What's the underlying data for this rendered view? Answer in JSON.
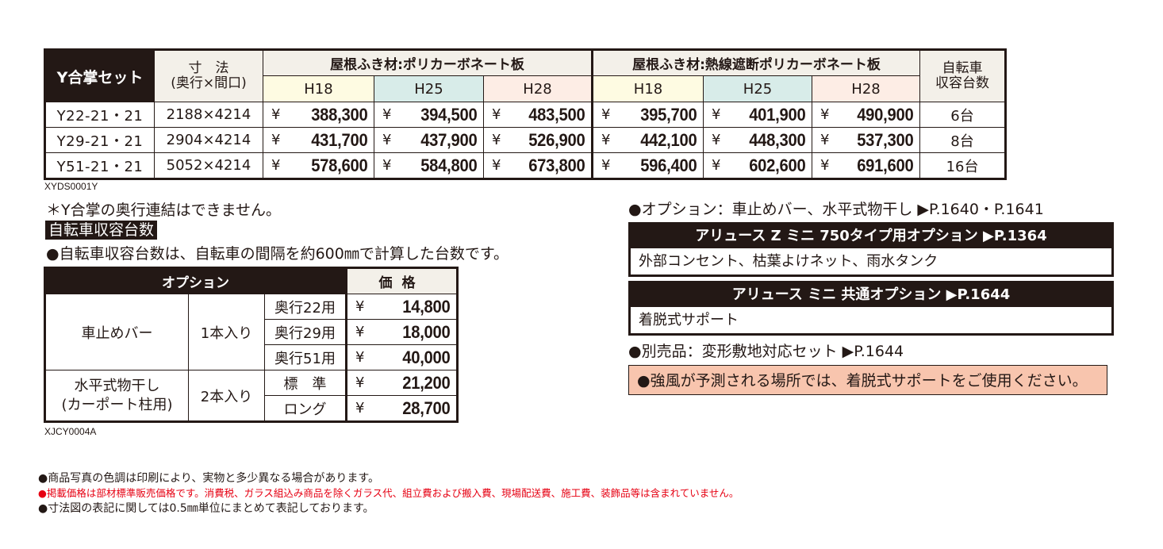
{
  "main_table": {
    "header": {
      "set_label": "Y合掌セット",
      "dim_label_1": "寸　法",
      "dim_label_2": "(奥行×間口)",
      "group_a": "屋根ふき材:ポリカーボネート板",
      "group_b": "屋根ふき材:熱線遮断ポリカーボネート板",
      "bike_label_1": "自転車",
      "bike_label_2": "収容台数",
      "heights": [
        "H18",
        "H25",
        "H28"
      ]
    },
    "currency": "¥",
    "rows": [
      {
        "model": "Y22-21・21",
        "dims": "2188×4214",
        "a": [
          "388,300",
          "394,500",
          "483,500"
        ],
        "b": [
          "395,700",
          "401,900",
          "490,900"
        ],
        "bikes": "6台"
      },
      {
        "model": "Y29-21・21",
        "dims": "2904×4214",
        "a": [
          "431,700",
          "437,900",
          "526,900"
        ],
        "b": [
          "442,100",
          "448,300",
          "537,300"
        ],
        "bikes": "8台"
      },
      {
        "model": "Y51-21・21",
        "dims": "5052×4214",
        "a": [
          "578,600",
          "584,800",
          "673,800"
        ],
        "b": [
          "596,400",
          "602,600",
          "691,600"
        ],
        "bikes": "16台"
      }
    ],
    "code": "XYDS0001Y"
  },
  "notes": {
    "no_depth_link": "＊Y合掌の奥行連結はできません。",
    "bike_section_label": "自転車収容台数",
    "bike_note": "●自転車収容台数は、自転車の間隔を約600㎜で計算した台数です。"
  },
  "options_table": {
    "header_option": "オプション",
    "header_price": "価格",
    "currency": "¥",
    "groups": [
      {
        "name": "車止めバー",
        "qty": "1本入り",
        "variants": [
          {
            "label": "奥行22用",
            "price": "14,800"
          },
          {
            "label": "奥行29用",
            "price": "18,000"
          },
          {
            "label": "奥行51用",
            "price": "40,000"
          }
        ]
      },
      {
        "name_1": "水平式物干し",
        "name_2": "(カーポート柱用)",
        "qty": "2本入り",
        "variants": [
          {
            "label": "標　準",
            "price": "21,200"
          },
          {
            "label": "ロング",
            "price": "28,700"
          }
        ]
      }
    ],
    "code": "XJCY0004A"
  },
  "right_panel": {
    "option_ref": "●オプション：車止めバー、水平式物干し ▶P.1640・P.1641",
    "box1": {
      "title": "アリュース Z ミニ 750タイプ用オプション ▶P.1364",
      "body": "外部コンセント、枯葉よけネット、雨水タンク"
    },
    "box2": {
      "title": "アリュース ミニ 共通オプション ▶P.1644",
      "body": "着脱式サポート"
    },
    "separate_item": "●別売品：変形敷地対応セット ▶P.1644",
    "warning": "●強風が予測される場所では、着脱式サポートをご使用ください。"
  },
  "footer": {
    "line1": "●商品写真の色調は印刷により、実物と多少異なる場合があります。",
    "line2": "●掲載価格は部材標準販売価格です。消費税、ガラス組込み商品を除くガラス代、組立費および搬入費、現場配送費、施工費、装飾品等は含まれていません。",
    "line3": "●寸法図の表記に関しては0.5㎜単位にまとめて表記しております。"
  },
  "colors": {
    "dark": "#231815",
    "cream": "#f3f0e9",
    "h18": "#fefbe2",
    "h25": "#d8ece9",
    "h28": "#fdede5",
    "warning_bg": "#f8c5ae",
    "red_text": "#e60012"
  }
}
